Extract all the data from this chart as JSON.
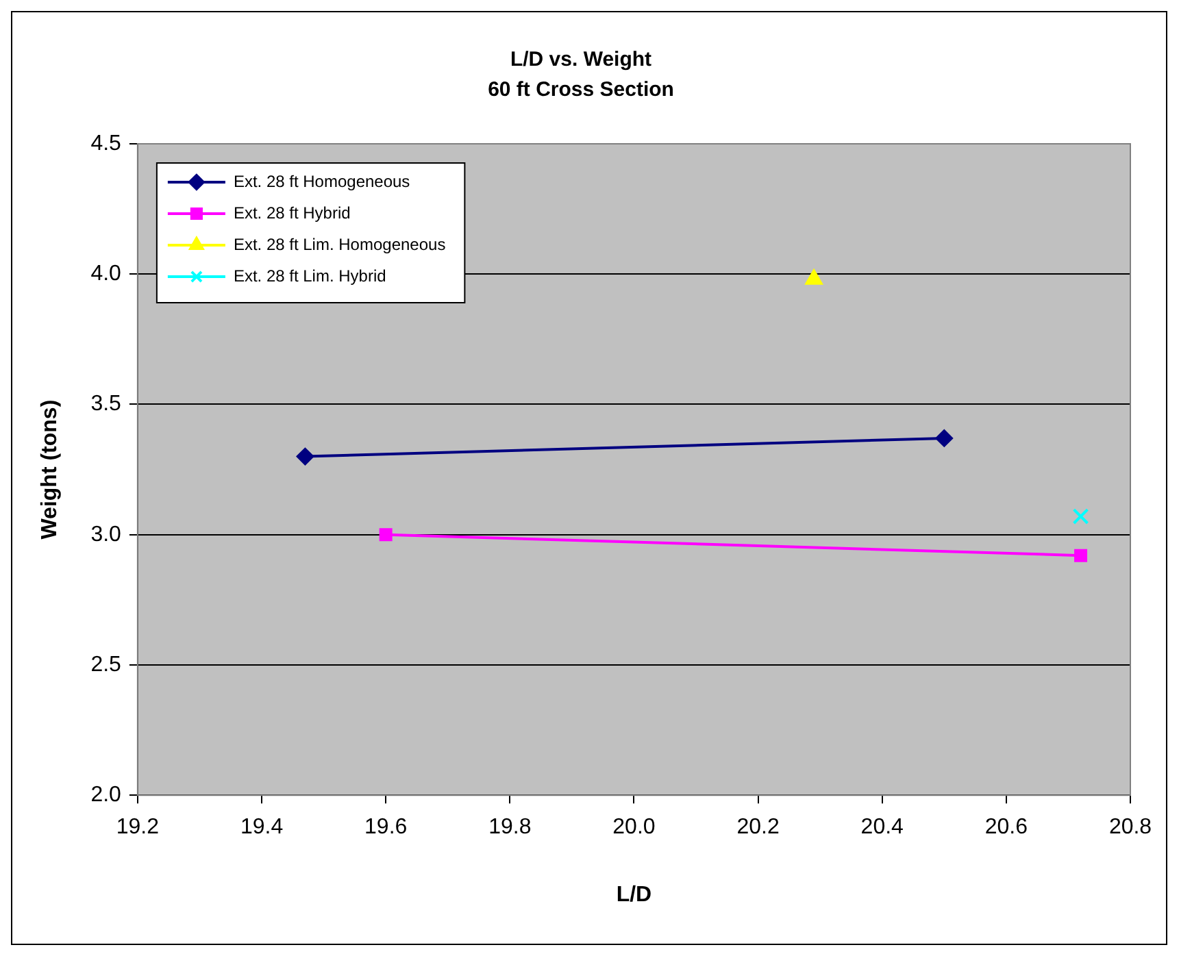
{
  "chart_data": {
    "type": "line",
    "title": "L/D vs. Weight",
    "subtitle": "60 ft Cross Section",
    "xlabel": "L/D",
    "ylabel": "Weight (tons)",
    "xlim": [
      19.2,
      20.8
    ],
    "xticks": [
      {
        "value": 19.2,
        "label": "19.2"
      },
      19.4,
      19.6,
      19.8,
      {
        "value": 20,
        "label": "20.0"
      },
      20.2,
      20.4,
      20.6,
      20.8
    ],
    "ylim": [
      2,
      4.5
    ],
    "yticks": [
      {
        "value": 2,
        "label": "2.0"
      },
      2.5,
      {
        "value": 3,
        "label": "3.0"
      },
      3.5,
      {
        "value": 4,
        "label": "4.0"
      },
      4.5
    ],
    "grid": "y",
    "legend": "top left",
    "series": [
      {
        "name": "Ext. 28 ft Homogeneous",
        "color": "#000080",
        "marker": "diamond",
        "x": [
          19.47,
          20.5
        ],
        "values": [
          3.3,
          3.37
        ]
      },
      {
        "name": "Ext. 28 ft Hybrid",
        "color": "#ff00ff",
        "marker": "square",
        "x": [
          19.6,
          20.72
        ],
        "values": [
          3.0,
          2.92
        ]
      },
      {
        "name": "Ext. 28 ft Lim. Homogeneous",
        "color": "#ffff00",
        "marker": "triangle",
        "x": [
          20.29
        ],
        "values": [
          3.98
        ]
      },
      {
        "name": "Ext. 28 ft Lim. Hybrid",
        "color": "#00ffff",
        "marker": "cross",
        "x": [
          20.72
        ],
        "values": [
          3.07
        ]
      }
    ]
  }
}
